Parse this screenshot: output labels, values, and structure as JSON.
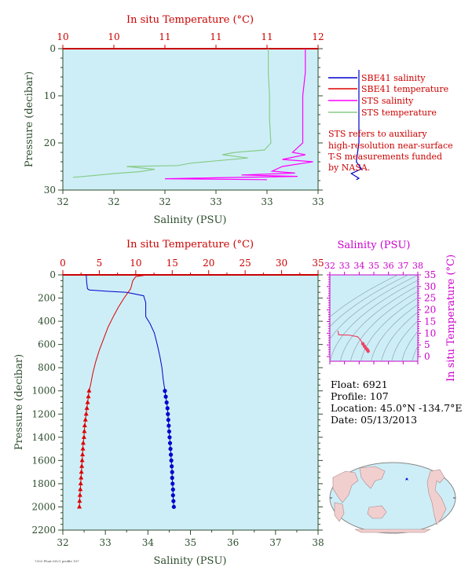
{
  "colors": {
    "salinity": "#0000cc",
    "temperature": "#dd0000",
    "sts_salinity": "#ff00ff",
    "sts_temperature": "#88cc88",
    "plot_bg": "#cdeef7",
    "axis_green": "#2e4d2e",
    "temp_red": "#cc0000",
    "ts_magenta": "#cc00cc"
  },
  "top_panel": {
    "title": "In situ Temperature (°C)",
    "xlabel": "Salinity (PSU)",
    "ylabel": "Pressure (decibar)",
    "legend": [
      "SBE41 salinity",
      "SBE41 temperature",
      "STS salinity",
      "STS temperature"
    ],
    "note": [
      "STS refers to auxiliary",
      "high-resolution near-surface",
      "T-S measurements funded",
      "by NASA."
    ]
  },
  "bottom_panel": {
    "title": "In situ Temperature (°C)",
    "xlabel": "Salinity (PSU)",
    "ylabel": "Pressure (decibar)"
  },
  "ts_panel": {
    "title": "Salinity (PSU)",
    "ylabel": "In situ Temperature (°C)"
  },
  "info": {
    "float": "Float:  6921",
    "profile": "Profile:  107",
    "location": "Location:  45.0°N  -134.7°E",
    "date": "Date:  05/13/2013"
  },
  "footer": "7303 Float 6921 profile 107",
  "chart_data": [
    {
      "type": "line",
      "panel": "top",
      "x_axis": {
        "label": "Salinity (PSU)",
        "range": [
          32,
          33
        ],
        "ticks": [
          "32",
          "32",
          "32",
          "33",
          "33",
          "33"
        ]
      },
      "x2_axis": {
        "label": "In situ Temperature (°C)",
        "range": [
          10,
          12
        ],
        "ticks": [
          "10",
          "10",
          "11",
          "11",
          "11",
          "12"
        ]
      },
      "y_axis": {
        "label": "Pressure (decibar)",
        "range": [
          0,
          30
        ],
        "inverted": true,
        "ticks": [
          "0",
          "10",
          "20",
          "30"
        ]
      },
      "series": [
        {
          "name": "SBE41 salinity",
          "axis": "salinity",
          "points": [
            [
              33.16,
              4.5
            ],
            [
              33.16,
              10
            ],
            [
              33.16,
              15
            ],
            [
              33.16,
              20
            ],
            [
              33.15,
              24
            ],
            [
              33.17,
              25.5
            ],
            [
              33.13,
              26.5
            ],
            [
              33.16,
              27.5
            ],
            [
              33.15,
              27.8
            ]
          ]
        },
        {
          "name": "SBE41 temperature",
          "axis": "temperature",
          "points": []
        },
        {
          "name": "STS salinity",
          "axis": "salinity",
          "points": [
            [
              32.95,
              0
            ],
            [
              32.95,
              5
            ],
            [
              32.94,
              10
            ],
            [
              32.94,
              15
            ],
            [
              32.94,
              20
            ],
            [
              32.9,
              22
            ],
            [
              32.95,
              22.5
            ],
            [
              32.86,
              23.5
            ],
            [
              32.98,
              24
            ],
            [
              32.86,
              25
            ],
            [
              32.82,
              26
            ],
            [
              32.91,
              26.4
            ],
            [
              32.7,
              26.8
            ],
            [
              32.92,
              27.1
            ],
            [
              32.6,
              27.4
            ],
            [
              32.4,
              27.6
            ],
            [
              32.8,
              27.8
            ]
          ]
        },
        {
          "name": "STS temperature",
          "axis": "temperature",
          "points": [
            [
              11.61,
              0
            ],
            [
              11.61,
              5
            ],
            [
              11.62,
              10
            ],
            [
              11.62,
              15
            ],
            [
              11.63,
              20
            ],
            [
              11.58,
              21.5
            ],
            [
              11.35,
              22
            ],
            [
              11.25,
              22.5
            ],
            [
              11.45,
              23.2
            ],
            [
              11.2,
              23.8
            ],
            [
              11.0,
              24.3
            ],
            [
              10.9,
              24.8
            ],
            [
              10.5,
              25.0
            ],
            [
              10.72,
              25.6
            ],
            [
              10.6,
              26.1
            ],
            [
              10.4,
              26.5
            ],
            [
              10.25,
              26.9
            ],
            [
              10.08,
              27.3
            ]
          ]
        }
      ]
    },
    {
      "type": "line",
      "panel": "bottom",
      "x_axis": {
        "label": "Salinity (PSU)",
        "range": [
          32,
          38
        ],
        "ticks": [
          "32",
          "33",
          "34",
          "35",
          "36",
          "37",
          "38"
        ]
      },
      "x2_axis": {
        "label": "In situ Temperature (°C)",
        "range": [
          0,
          35
        ],
        "ticks": [
          "0",
          "5",
          "10",
          "15",
          "20",
          "25",
          "30",
          "35"
        ]
      },
      "y_axis": {
        "label": "Pressure (decibar)",
        "range": [
          0,
          2200
        ],
        "inverted": true,
        "ticks": [
          "0",
          "200",
          "400",
          "600",
          "800",
          "1000",
          "1200",
          "1400",
          "1600",
          "1800",
          "2000",
          "2200"
        ]
      },
      "series": [
        {
          "name": "SBE41 salinity",
          "axis": "salinity",
          "points": [
            [
              32.55,
              0
            ],
            [
              32.56,
              60
            ],
            [
              32.58,
              120
            ],
            [
              32.62,
              130
            ],
            [
              33.0,
              140
            ],
            [
              33.5,
              150
            ],
            [
              33.9,
              180
            ],
            [
              33.95,
              240
            ],
            [
              33.95,
              360
            ],
            [
              34.05,
              420
            ],
            [
              34.15,
              500
            ],
            [
              34.22,
              600
            ],
            [
              34.28,
              700
            ],
            [
              34.33,
              800
            ],
            [
              34.36,
              900
            ],
            [
              34.4,
              1000
            ],
            [
              34.42,
              1050
            ],
            [
              34.44,
              1100
            ],
            [
              34.46,
              1150
            ],
            [
              34.47,
              1200
            ],
            [
              34.48,
              1250
            ],
            [
              34.49,
              1300
            ],
            [
              34.5,
              1350
            ],
            [
              34.51,
              1400
            ],
            [
              34.52,
              1450
            ],
            [
              34.53,
              1500
            ],
            [
              34.54,
              1550
            ],
            [
              34.55,
              1600
            ],
            [
              34.56,
              1650
            ],
            [
              34.57,
              1700
            ],
            [
              34.57,
              1750
            ],
            [
              34.58,
              1800
            ],
            [
              34.59,
              1850
            ],
            [
              34.59,
              1900
            ],
            [
              34.6,
              1950
            ],
            [
              34.61,
              2000
            ]
          ]
        },
        {
          "name": "SBE41 temperature",
          "axis": "temperature",
          "points": [
            [
              11.6,
              0
            ],
            [
              10.0,
              15
            ],
            [
              9.6,
              50
            ],
            [
              9.3,
              120
            ],
            [
              8.4,
              200
            ],
            [
              7.6,
              280
            ],
            [
              7.0,
              350
            ],
            [
              6.2,
              450
            ],
            [
              5.6,
              550
            ],
            [
              5.0,
              650
            ],
            [
              4.5,
              750
            ],
            [
              4.1,
              850
            ],
            [
              3.8,
              950
            ],
            [
              3.6,
              1000
            ],
            [
              3.5,
              1050
            ],
            [
              3.4,
              1100
            ],
            [
              3.3,
              1150
            ],
            [
              3.2,
              1200
            ],
            [
              3.1,
              1250
            ],
            [
              3.0,
              1300
            ],
            [
              2.95,
              1350
            ],
            [
              2.9,
              1400
            ],
            [
              2.8,
              1450
            ],
            [
              2.75,
              1500
            ],
            [
              2.7,
              1550
            ],
            [
              2.65,
              1600
            ],
            [
              2.6,
              1650
            ],
            [
              2.55,
              1700
            ],
            [
              2.5,
              1750
            ],
            [
              2.45,
              1800
            ],
            [
              2.4,
              1850
            ],
            [
              2.35,
              1900
            ],
            [
              2.3,
              1950
            ],
            [
              2.27,
              2000
            ]
          ]
        }
      ]
    },
    {
      "type": "line",
      "panel": "ts_diagram",
      "x_axis": {
        "label": "Salinity (PSU)",
        "range": [
          32,
          38
        ],
        "ticks": [
          "32",
          "33",
          "34",
          "35",
          "36",
          "37",
          "38"
        ]
      },
      "y_axis": {
        "label": "In situ Temperature (°C)",
        "range": [
          -2,
          35
        ],
        "ticks": [
          "0",
          "5",
          "10",
          "15",
          "20",
          "25",
          "30",
          "35"
        ]
      },
      "series": [
        {
          "name": "T-S profile",
          "points": [
            [
              32.55,
              11.0
            ],
            [
              32.6,
              9.3
            ],
            [
              33.3,
              9.2
            ],
            [
              33.9,
              8.5
            ],
            [
              34.1,
              7.0
            ],
            [
              34.25,
              5.5
            ],
            [
              34.35,
              4.5
            ],
            [
              34.45,
              3.6
            ],
            [
              34.55,
              3.0
            ],
            [
              34.61,
              2.3
            ]
          ]
        }
      ]
    }
  ]
}
